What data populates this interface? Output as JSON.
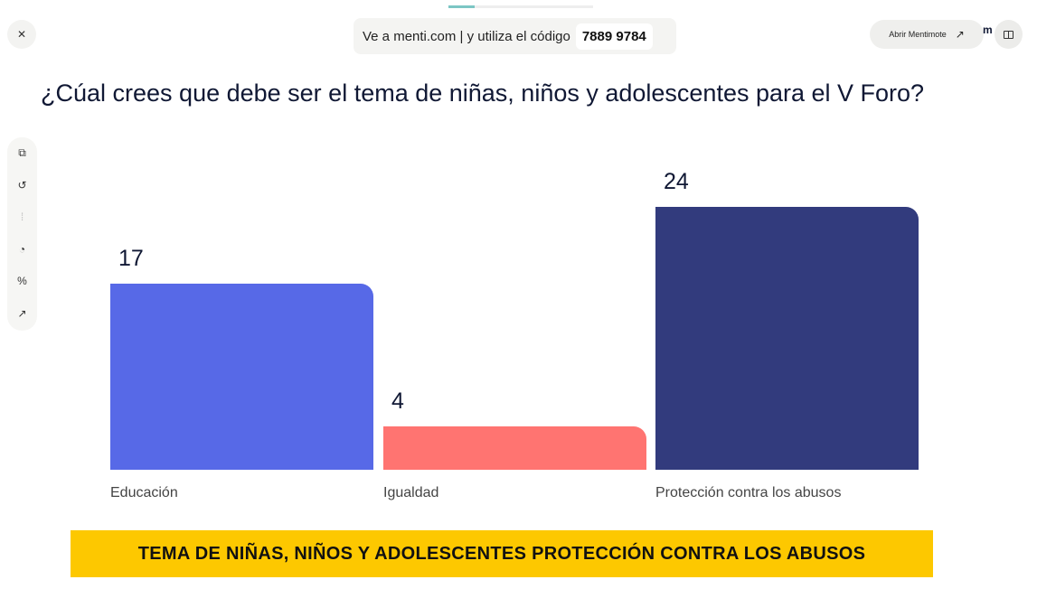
{
  "header": {
    "close_icon": "close-icon",
    "code_prompt": "Ve a menti.com | y utiliza el código",
    "code": "7889 9784",
    "open_mentimote": "Abrir Mentimote",
    "logo_fragment": "m",
    "progress": 0.18
  },
  "question": "¿Cúal crees que debe ser el tema de niñas, niños y adolescentes para el V Foro?",
  "toolbar": [
    "copy-icon",
    "reset-results-icon",
    "bar-chart-icon",
    "pie-chart-icon",
    "percent-icon",
    "trend-icon"
  ],
  "chart_data": {
    "type": "bar",
    "categories": [
      "Educación",
      "Igualdad",
      "Protección contra los abusos"
    ],
    "values": [
      17,
      4,
      24
    ],
    "colors": [
      "#5769e7",
      "#ff7471",
      "#323b7d"
    ],
    "ylim": [
      0,
      24
    ]
  },
  "banner": "TEMA DE NIÑAS, NIÑOS Y ADOLESCENTES PROTECCIÓN CONTRA LOS ABUSOS"
}
